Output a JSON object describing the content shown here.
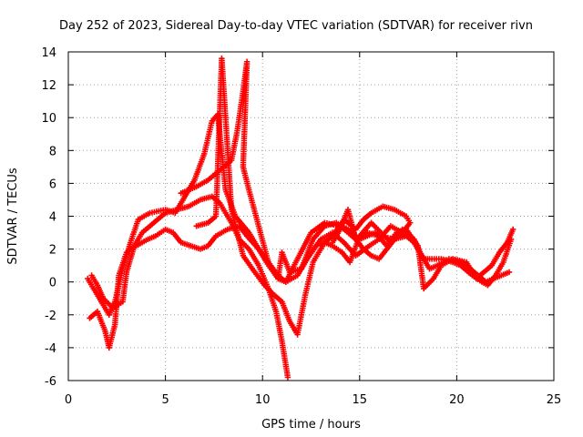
{
  "chart_data": {
    "type": "scatter",
    "title": "Day 252 of 2023, Sidereal Day-to-day VTEC variation (SDTVAR) for receiver rivn",
    "xlabel": "GPS time / hours",
    "ylabel": "SDTVAR / TECUs",
    "xlim": [
      0,
      25
    ],
    "ylim": [
      -6,
      14
    ],
    "xticks": [
      0,
      5,
      10,
      15,
      20,
      25
    ],
    "yticks": [
      -6,
      -4,
      -2,
      0,
      2,
      4,
      6,
      8,
      10,
      12,
      14
    ],
    "grid": true,
    "marker": "plus",
    "color": "#ff0000",
    "tracks": [
      [
        [
          1.0,
          0.2
        ],
        [
          1.3,
          -0.4
        ],
        [
          1.7,
          -1.2
        ],
        [
          2.1,
          -2.0
        ],
        [
          2.4,
          -1.2
        ],
        [
          2.8,
          0.8
        ],
        [
          3.2,
          2.4
        ],
        [
          3.6,
          3.8
        ],
        [
          4.2,
          4.2
        ],
        [
          5.0,
          4.4
        ],
        [
          5.5,
          4.2
        ],
        [
          6.0,
          5.2
        ],
        [
          6.5,
          6.2
        ],
        [
          7.0,
          7.8
        ],
        [
          7.4,
          9.8
        ],
        [
          7.7,
          10.2
        ],
        [
          7.8,
          9.0
        ],
        [
          8.1,
          5.6
        ],
        [
          8.6,
          4.0
        ],
        [
          9.3,
          3.0
        ],
        [
          10.2,
          1.2
        ],
        [
          10.8,
          0.2
        ],
        [
          11.2,
          0.0
        ],
        [
          11.8,
          1.4
        ],
        [
          12.5,
          3.0
        ],
        [
          13.2,
          3.6
        ],
        [
          14.0,
          3.4
        ],
        [
          14.8,
          2.6
        ],
        [
          15.4,
          3.0
        ],
        [
          16.0,
          2.8
        ],
        [
          16.8,
          2.6
        ],
        [
          17.4,
          2.8
        ]
      ],
      [
        [
          1.1,
          -2.2
        ],
        [
          1.5,
          -1.8
        ],
        [
          1.9,
          -3.0
        ],
        [
          2.1,
          -4.0
        ],
        [
          2.4,
          -2.6
        ],
        [
          2.6,
          0.4
        ],
        [
          3.0,
          1.8
        ],
        [
          3.5,
          2.2
        ],
        [
          4.1,
          2.6
        ],
        [
          4.5,
          2.8
        ],
        [
          5.0,
          3.2
        ],
        [
          5.4,
          3.0
        ],
        [
          5.8,
          2.4
        ],
        [
          6.3,
          2.2
        ],
        [
          6.8,
          2.0
        ],
        [
          7.2,
          2.2
        ],
        [
          7.6,
          2.8
        ],
        [
          8.2,
          3.2
        ],
        [
          8.8,
          3.4
        ],
        [
          9.2,
          2.8
        ],
        [
          9.8,
          2.0
        ],
        [
          10.3,
          1.2
        ],
        [
          10.8,
          0.4
        ],
        [
          11.2,
          0.0
        ],
        [
          11.8,
          0.4
        ],
        [
          12.3,
          1.4
        ],
        [
          13.0,
          2.6
        ],
        [
          13.6,
          3.0
        ],
        [
          14.2,
          2.4
        ],
        [
          14.8,
          1.6
        ],
        [
          15.5,
          2.2
        ],
        [
          16.0,
          2.6
        ],
        [
          16.6,
          3.4
        ],
        [
          17.2,
          3.0
        ],
        [
          17.8,
          2.4
        ],
        [
          18.3,
          1.4
        ],
        [
          18.6,
          1.4
        ],
        [
          19.2,
          1.4
        ],
        [
          19.8,
          1.2
        ],
        [
          20.2,
          1.0
        ],
        [
          20.8,
          0.4
        ],
        [
          21.3,
          0.0
        ],
        [
          21.6,
          -0.2
        ],
        [
          22.0,
          0.4
        ],
        [
          22.4,
          1.2
        ],
        [
          22.8,
          2.6
        ]
      ],
      [
        [
          1.2,
          0.4
        ],
        [
          1.5,
          -0.2
        ],
        [
          1.8,
          -1.0
        ],
        [
          2.3,
          -1.6
        ],
        [
          2.8,
          -1.2
        ],
        [
          3.0,
          0.6
        ],
        [
          3.4,
          2.2
        ],
        [
          3.8,
          3.0
        ],
        [
          4.4,
          3.6
        ],
        [
          5.0,
          4.2
        ],
        [
          5.6,
          4.4
        ],
        [
          6.2,
          4.6
        ],
        [
          6.8,
          5.0
        ],
        [
          7.4,
          5.2
        ],
        [
          7.8,
          4.8
        ],
        [
          8.4,
          3.6
        ],
        [
          8.8,
          2.6
        ],
        [
          9.3,
          2.0
        ],
        [
          9.8,
          1.0
        ],
        [
          10.3,
          -0.4
        ],
        [
          10.7,
          -1.8
        ],
        [
          11.0,
          -3.6
        ],
        [
          11.3,
          -5.8
        ]
      ],
      [
        [
          6.6,
          3.4
        ],
        [
          7.2,
          3.6
        ],
        [
          7.6,
          4.0
        ],
        [
          7.9,
          13.6
        ],
        [
          8.4,
          4.4
        ],
        [
          9.0,
          1.6
        ],
        [
          9.6,
          0.6
        ],
        [
          10.1,
          -0.2
        ],
        [
          10.6,
          -0.8
        ],
        [
          11.0,
          -1.2
        ],
        [
          11.4,
          -2.4
        ],
        [
          11.8,
          -3.2
        ],
        [
          12.2,
          -0.8
        ],
        [
          12.6,
          1.2
        ],
        [
          13.2,
          2.4
        ],
        [
          13.6,
          2.2
        ],
        [
          14.1,
          1.8
        ],
        [
          14.5,
          1.2
        ],
        [
          15.0,
          2.8
        ],
        [
          15.6,
          3.6
        ],
        [
          16.1,
          3.0
        ],
        [
          16.6,
          2.4
        ],
        [
          17.2,
          3.2
        ],
        [
          17.8,
          2.6
        ],
        [
          18.2,
          1.6
        ],
        [
          18.6,
          0.8
        ],
        [
          19.0,
          1.0
        ],
        [
          19.6,
          1.4
        ],
        [
          20.3,
          1.2
        ],
        [
          20.9,
          0.6
        ],
        [
          21.5,
          0.0
        ],
        [
          21.9,
          0.2
        ],
        [
          22.3,
          0.4
        ],
        [
          22.7,
          0.6
        ]
      ],
      [
        [
          5.8,
          5.4
        ],
        [
          6.6,
          5.8
        ],
        [
          7.2,
          6.2
        ],
        [
          7.8,
          6.8
        ],
        [
          8.4,
          7.4
        ],
        [
          8.7,
          9.2
        ],
        [
          9.0,
          11.6
        ],
        [
          9.2,
          13.4
        ],
        [
          9.0,
          7.0
        ],
        [
          9.3,
          5.6
        ],
        [
          9.8,
          3.4
        ],
        [
          10.3,
          1.2
        ],
        [
          10.8,
          0.2
        ],
        [
          11.0,
          1.8
        ],
        [
          11.4,
          0.6
        ],
        [
          12.0,
          0.8
        ],
        [
          12.6,
          2.6
        ],
        [
          13.2,
          3.4
        ],
        [
          13.8,
          3.6
        ],
        [
          14.4,
          3.2
        ],
        [
          15.0,
          2.6
        ],
        [
          15.8,
          3.0
        ],
        [
          16.4,
          2.2
        ],
        [
          16.9,
          3.0
        ],
        [
          17.4,
          3.2
        ],
        [
          18.0,
          2.2
        ],
        [
          18.3,
          -0.4
        ],
        [
          18.8,
          0.2
        ],
        [
          19.2,
          1.0
        ],
        [
          19.8,
          1.4
        ],
        [
          20.5,
          1.2
        ],
        [
          21.0,
          0.2
        ],
        [
          21.4,
          0.6
        ],
        [
          21.8,
          1.0
        ],
        [
          22.2,
          1.8
        ],
        [
          22.6,
          2.4
        ],
        [
          22.9,
          3.2
        ]
      ],
      [
        [
          13.0,
          2.2
        ],
        [
          13.6,
          2.8
        ],
        [
          14.2,
          3.8
        ],
        [
          14.8,
          3.2
        ],
        [
          15.2,
          3.8
        ],
        [
          15.6,
          4.2
        ],
        [
          16.2,
          4.6
        ],
        [
          16.8,
          4.4
        ],
        [
          17.4,
          4.0
        ],
        [
          17.6,
          3.6
        ],
        [
          17.2,
          3.0
        ],
        [
          16.8,
          2.6
        ],
        [
          16.4,
          2.0
        ],
        [
          16.0,
          1.4
        ],
        [
          15.6,
          1.6
        ],
        [
          15.2,
          2.0
        ],
        [
          14.8,
          2.6
        ],
        [
          14.4,
          4.4
        ],
        [
          14.0,
          3.2
        ],
        [
          13.6,
          2.4
        ]
      ]
    ]
  }
}
